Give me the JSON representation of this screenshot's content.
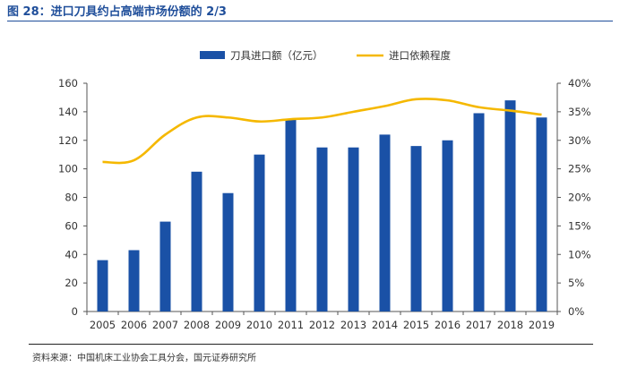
{
  "figure_title": "图 28：进口刀具约占高端市场份额的 2/3",
  "source_note": "资料来源：中国机床工业协会工具分会，国元证券研究所",
  "colors": {
    "bar": "#1a51a6",
    "line": "#f5b800",
    "title": "#1f4e9a",
    "axis": "#555555",
    "text": "#333333"
  },
  "chart_data": {
    "type": "bar",
    "categories": [
      "2005",
      "2006",
      "2007",
      "2008",
      "2009",
      "2010",
      "2011",
      "2012",
      "2013",
      "2014",
      "2015",
      "2016",
      "2017",
      "2018",
      "2019"
    ],
    "series": [
      {
        "name": "刀具进口额（亿元）",
        "type": "bar",
        "axis": "left",
        "values": [
          36,
          43,
          63,
          98,
          83,
          110,
          135,
          115,
          115,
          124,
          116,
          120,
          139,
          148,
          136
        ]
      },
      {
        "name": "进口依赖程度",
        "type": "line",
        "axis": "right",
        "values": [
          26.2,
          26.5,
          31,
          34,
          34,
          33.3,
          33.7,
          34,
          35,
          36,
          37.2,
          37,
          35.8,
          35.2,
          34.5
        ]
      }
    ],
    "left_axis": {
      "ylim": [
        0,
        160
      ],
      "ticks": [
        "0",
        "20",
        "40",
        "60",
        "80",
        "100",
        "120",
        "140",
        "160"
      ]
    },
    "right_axis": {
      "ylim": [
        0,
        40
      ],
      "ticks": [
        "0%",
        "5%",
        "10%",
        "15%",
        "20%",
        "25%",
        "30%",
        "35%",
        "40%"
      ]
    },
    "legend_position": "top",
    "grid": false
  }
}
